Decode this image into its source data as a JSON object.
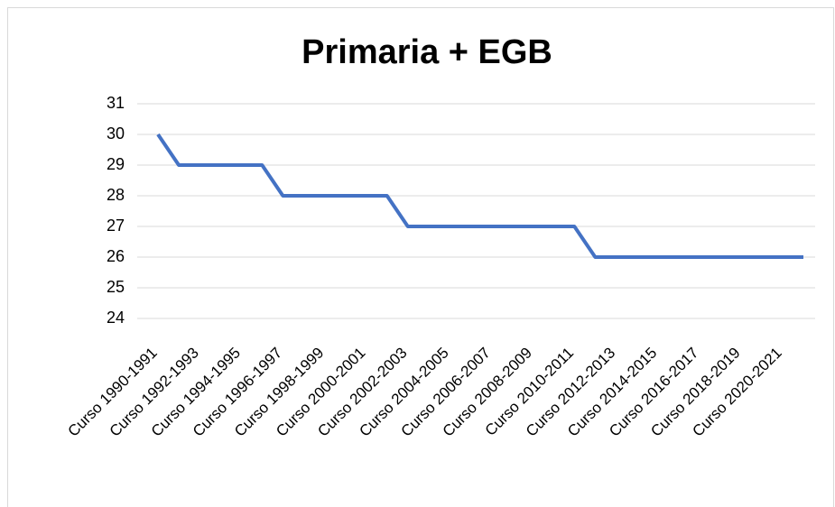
{
  "chart_data": {
    "type": "line",
    "title": "Primaria + EGB",
    "categories": [
      "Curso 1990-1991",
      null,
      "Curso 1992-1993",
      null,
      "Curso 1994-1995",
      null,
      "Curso 1996-1997",
      null,
      "Curso 1998-1999",
      null,
      "Curso 2000-2001",
      null,
      "Curso 2002-2003",
      null,
      "Curso 2004-2005",
      null,
      "Curso 2006-2007",
      null,
      "Curso 2008-2009",
      null,
      "Curso 2010-2011",
      null,
      "Curso 2012-2013",
      null,
      "Curso 2014-2015",
      null,
      "Curso 2016-2017",
      null,
      "Curso 2018-2019",
      null,
      "Curso 2020-2021",
      null
    ],
    "values": [
      30,
      29,
      29,
      29,
      29,
      29,
      28,
      28,
      28,
      28,
      28,
      28,
      27,
      27,
      27,
      27,
      27,
      27,
      27,
      27,
      27,
      26,
      26,
      26,
      26,
      26,
      26,
      26,
      26,
      26,
      26,
      26
    ],
    "color": "#4472c4",
    "ylim": [
      24,
      31
    ],
    "yticks": [
      24,
      25,
      26,
      27,
      28,
      29,
      30,
      31
    ],
    "grid": true
  }
}
